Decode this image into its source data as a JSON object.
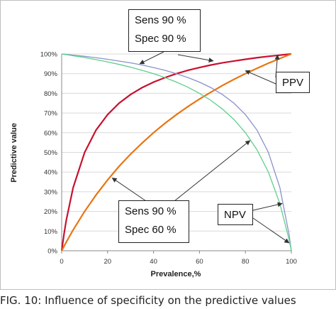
{
  "chart_data": {
    "type": "line",
    "xlabel": "Prevalence,%",
    "ylabel": "Predictive value",
    "xlim": [
      0,
      100
    ],
    "ylim": [
      0,
      100
    ],
    "x_ticks": [
      "0",
      "20",
      "40",
      "60",
      "80",
      "100"
    ],
    "y_ticks": [
      "0%",
      "10%",
      "20%",
      "30%",
      "40%",
      "50%",
      "60%",
      "70%",
      "80%",
      "90%",
      "100%"
    ],
    "grid": true,
    "legend": "none",
    "series": [
      {
        "color": "#c8102e",
        "x": [
          0,
          1,
          2,
          5,
          10,
          15,
          20,
          25,
          30,
          35,
          40,
          45,
          50,
          55,
          60,
          65,
          70,
          75,
          80,
          85,
          90,
          95,
          99,
          100
        ],
        "y": [
          0,
          8.3,
          15.5,
          32.1,
          50.0,
          61.4,
          69.2,
          75.0,
          79.4,
          82.9,
          85.7,
          88.0,
          90.0,
          91.7,
          93.1,
          94.4,
          95.5,
          96.4,
          97.3,
          98.1,
          98.8,
          99.4,
          99.9,
          100
        ]
      },
      {
        "color": "#e87511",
        "x": [
          0,
          1,
          2,
          5,
          10,
          15,
          20,
          25,
          30,
          35,
          40,
          45,
          50,
          55,
          60,
          65,
          70,
          75,
          80,
          85,
          90,
          95,
          99,
          100
        ],
        "y": [
          0,
          2.2,
          4.4,
          10.6,
          20.0,
          28.4,
          36.0,
          42.9,
          49.1,
          54.7,
          60.0,
          64.8,
          69.2,
          73.3,
          77.1,
          80.6,
          84.0,
          87.1,
          90.0,
          92.7,
          95.3,
          97.7,
          99.6,
          100
        ]
      },
      {
        "color": "#8a92c8",
        "x": [
          0,
          1,
          2,
          5,
          10,
          15,
          20,
          25,
          30,
          35,
          40,
          45,
          50,
          55,
          60,
          65,
          70,
          75,
          80,
          85,
          90,
          95,
          99,
          100
        ],
        "y": [
          100,
          99.9,
          99.8,
          99.4,
          98.8,
          98.1,
          97.3,
          96.4,
          95.5,
          94.4,
          93.1,
          91.7,
          90.0,
          88.0,
          85.7,
          82.9,
          79.4,
          75.0,
          69.2,
          61.4,
          50.0,
          32.1,
          8.3,
          0
        ]
      },
      {
        "color": "#5ecf8c",
        "x": [
          0,
          1,
          2,
          5,
          10,
          15,
          20,
          25,
          30,
          35,
          40,
          45,
          50,
          55,
          60,
          65,
          70,
          75,
          80,
          85,
          90,
          95,
          99,
          100
        ],
        "y": [
          100,
          99.8,
          99.7,
          99.1,
          98.2,
          97.1,
          96.0,
          94.7,
          93.3,
          91.7,
          90.0,
          88.0,
          85.7,
          83.1,
          80.0,
          76.4,
          72.0,
          66.7,
          60.0,
          51.4,
          40.0,
          24.0,
          5.7,
          0
        ]
      }
    ],
    "annotations": [
      {
        "id": "sens-spec-90",
        "lines": [
          "Sens 90 %",
          "Spec 90 %"
        ]
      },
      {
        "id": "ppv",
        "lines": [
          "PPV"
        ]
      },
      {
        "id": "sens-spec-60",
        "lines": [
          "Sens 90 %",
          "Spec 60 %"
        ]
      },
      {
        "id": "npv",
        "lines": [
          "NPV"
        ]
      }
    ]
  },
  "caption": "FIG. 10: Influence of specificity on the predictive values"
}
